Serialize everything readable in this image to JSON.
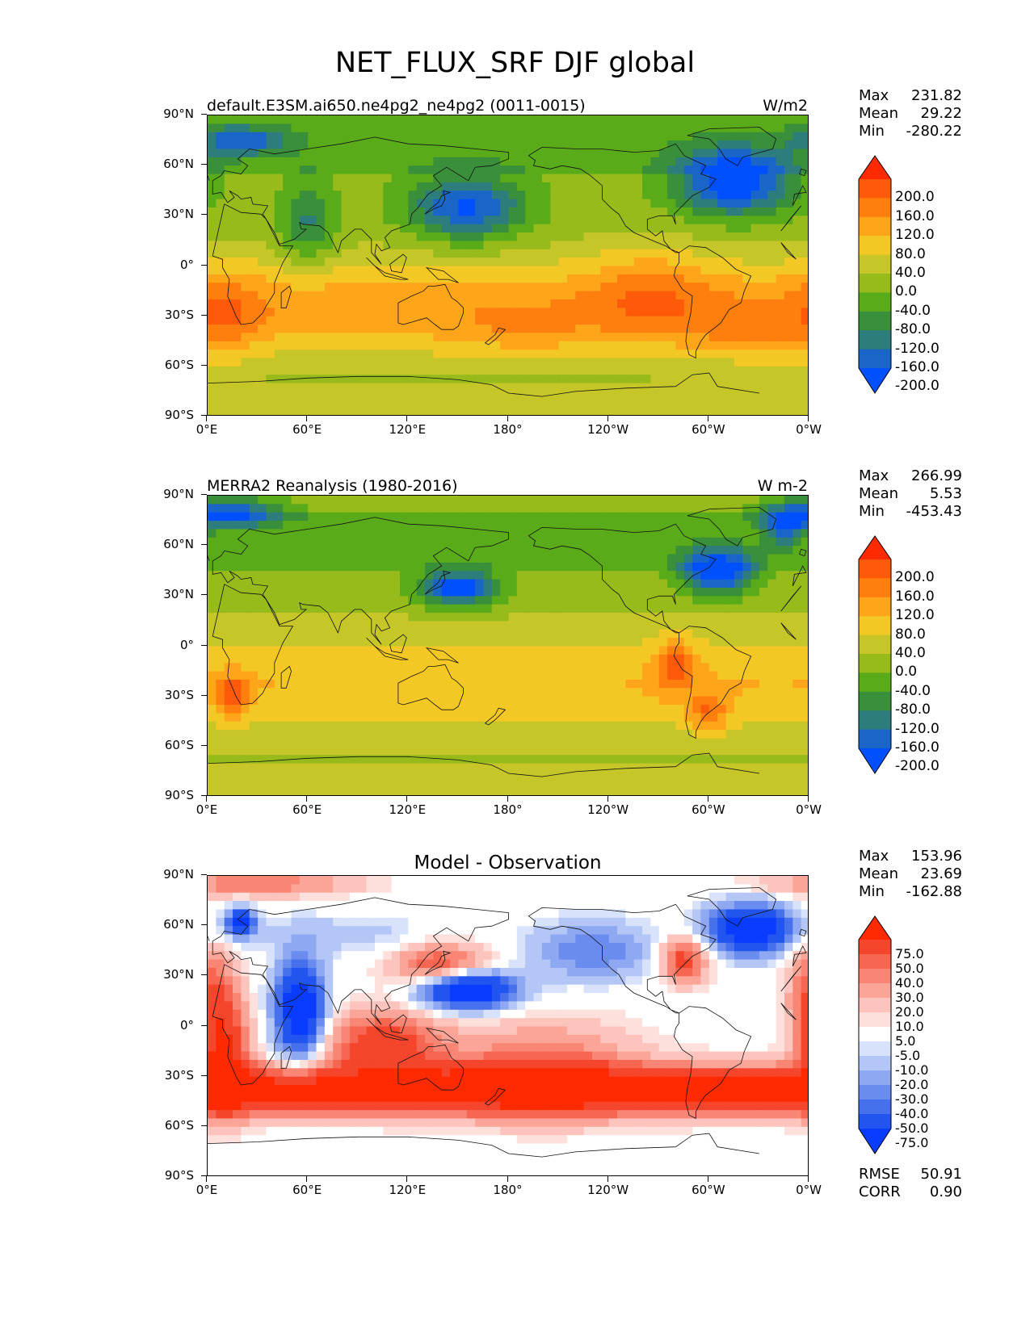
{
  "suptitle": "NET_FLUX_SRF DJF global",
  "x_ticks": [
    "0°E",
    "60°E",
    "120°E",
    "180°",
    "120°W",
    "60°W",
    "0°W"
  ],
  "y_ticks": [
    "90°N",
    "60°N",
    "30°N",
    "0°",
    "30°S",
    "60°S",
    "90°S"
  ],
  "panels": [
    {
      "title_left": "default.E3SM.ai650.ne4pg2_ne4pg2 (0011-0015)",
      "title_right": "W/m2",
      "title_center": "",
      "stats": {
        "max_label": "Max",
        "max": "231.82",
        "mean_label": "Mean",
        "mean": "29.22",
        "min_label": "Min",
        "min": "-280.22"
      },
      "colorbar_labels": [
        "200.0",
        "160.0",
        "120.0",
        "80.0",
        "40.0",
        "0.0",
        "-40.0",
        "-80.0",
        "-120.0",
        "-160.0",
        "-200.0"
      ]
    },
    {
      "title_left": "MERRA2 Reanalysis (1980-2016)",
      "title_right": "W m-2",
      "title_center": "",
      "stats": {
        "max_label": "Max",
        "max": "266.99",
        "mean_label": "Mean",
        "mean": "5.53",
        "min_label": "Min",
        "min": "-453.43"
      },
      "colorbar_labels": [
        "200.0",
        "160.0",
        "120.0",
        "80.0",
        "40.0",
        "0.0",
        "-40.0",
        "-80.0",
        "-120.0",
        "-160.0",
        "-200.0"
      ]
    },
    {
      "title_left": "",
      "title_right": "",
      "title_center": "Model - Observation",
      "stats": {
        "max_label": "Max",
        "max": "153.96",
        "mean_label": "Mean",
        "mean": "23.69",
        "min_label": "Min",
        "min": "-162.88"
      },
      "colorbar_labels": [
        "75.0",
        "50.0",
        "40.0",
        "30.0",
        "20.0",
        "10.0",
        "5.0",
        "-5.0",
        "-10.0",
        "-20.0",
        "-30.0",
        "-40.0",
        "-50.0",
        "-75.0"
      ],
      "footer": {
        "rmse_label": "RMSE",
        "rmse": "50.91",
        "corr_label": "CORR",
        "corr": "0.90"
      }
    }
  ],
  "chart_data": [
    {
      "type": "heatmap",
      "title": "default.E3SM.ai650.ne4pg2_ne4pg2 (0011-0015)",
      "units": "W/m2",
      "xlabel": "",
      "ylabel": "",
      "xlim": [
        0,
        360
      ],
      "ylim": [
        -90,
        90
      ],
      "levels": [
        -200,
        -160,
        -120,
        -80,
        -40,
        0,
        40,
        80,
        120,
        160,
        200
      ],
      "colors": [
        "#0050ff",
        "#1a66c8",
        "#2e7d7d",
        "#3a8f3a",
        "#5aab1a",
        "#96bb1a",
        "#c6c628",
        "#f4c824",
        "#ffa51a",
        "#ff7f0e",
        "#ff5a0a",
        "#ff2a00"
      ],
      "max": 231.82,
      "mean": 29.22,
      "min": -280.22
    },
    {
      "type": "heatmap",
      "title": "MERRA2 Reanalysis (1980-2016)",
      "units": "W m-2",
      "xlabel": "",
      "ylabel": "",
      "xlim": [
        0,
        360
      ],
      "ylim": [
        -90,
        90
      ],
      "levels": [
        -200,
        -160,
        -120,
        -80,
        -40,
        0,
        40,
        80,
        120,
        160,
        200
      ],
      "colors": [
        "#0050ff",
        "#1a66c8",
        "#2e7d7d",
        "#3a8f3a",
        "#5aab1a",
        "#96bb1a",
        "#c6c628",
        "#f4c824",
        "#ffa51a",
        "#ff7f0e",
        "#ff5a0a",
        "#ff2a00"
      ],
      "max": 266.99,
      "mean": 5.53,
      "min": -453.43
    },
    {
      "type": "heatmap",
      "title": "Model - Observation",
      "units": "",
      "xlabel": "",
      "ylabel": "",
      "xlim": [
        0,
        360
      ],
      "ylim": [
        -90,
        90
      ],
      "levels": [
        -75,
        -50,
        -40,
        -30,
        -20,
        -10,
        -5,
        5,
        10,
        20,
        30,
        40,
        50,
        75
      ],
      "colors": [
        "#0a3cff",
        "#2255f0",
        "#4670ec",
        "#6a8cee",
        "#8ea8f2",
        "#b4c6f6",
        "#d8e2fa",
        "#ffffff",
        "#fde0dc",
        "#fcc4bc",
        "#fba598",
        "#f98574",
        "#f76650",
        "#f5452c",
        "#ff2a00"
      ],
      "max": 153.96,
      "mean": 23.69,
      "min": -162.88,
      "rmse": 50.91,
      "corr": 0.9
    }
  ]
}
